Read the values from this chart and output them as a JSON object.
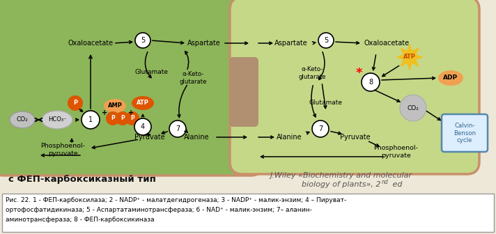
{
  "title_left": "с ФЕП-карбоксиказный тип",
  "title_right": "J.Wiley «Biochemistry and molecular\nbiology of plants», 2nd ed",
  "caption_line1": "Рис. 22. 1 - ФЕП-карбоксилаза; 2 - NADP⁺ - малатдегидрогеназа; 3 - NADP⁺ - малик-энзим; 4 – Пируват-",
  "caption_line2": "ортофосфатидикиназа; 5 - Аспартатаминотрансфераза; 6 - NAD⁺ - малик-энзим; 7– аланин-",
  "caption_line3": "аминотрансфераза; 8 - ФЕП-карбоксикиназа",
  "bg_outer": "#eee8d8",
  "bg_cell_left": "#8db55a",
  "bg_cell_right": "#c5d888",
  "cell_outline": "#c8906a",
  "caption_bg": "#ffffff",
  "caption_border": "#999999",
  "orange_dark": "#dd5500",
  "orange_mid": "#e88030",
  "orange_light": "#f0a050",
  "yellow_star": "#f0c020",
  "circle_bg": "#ffffff",
  "adp_color": "#f0a050",
  "co2_color": "#c0c0c0",
  "hco3_color": "#d0d0d0",
  "cb_box_edge": "#5588aa",
  "cb_box_face": "#ddeeff",
  "cb_text": "#336688"
}
